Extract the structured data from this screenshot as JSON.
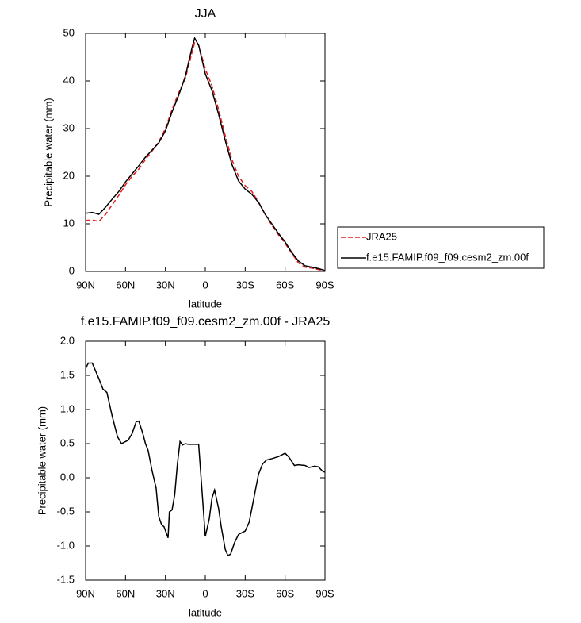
{
  "chart_data": [
    {
      "type": "line",
      "title": "JJA",
      "xlabel": "latitude",
      "ylabel": "Precipitable water (mm)",
      "x": [
        90,
        85,
        80,
        75,
        70,
        65,
        60,
        55,
        50,
        45,
        40,
        35,
        30,
        25,
        20,
        15,
        10,
        8,
        5,
        0,
        -5,
        -10,
        -15,
        -20,
        -25,
        -30,
        -35,
        -40,
        -45,
        -50,
        -55,
        -60,
        -65,
        -70,
        -75,
        -80,
        -85,
        -90
      ],
      "series": [
        {
          "name": "JRA25",
          "color": "#e31a1c",
          "line_style": "dashed",
          "values": [
            10.7,
            10.8,
            10.5,
            12,
            14,
            16,
            18.2,
            20,
            21.5,
            23.5,
            25.3,
            27.2,
            30,
            34,
            37.5,
            40.5,
            46,
            48,
            47.5,
            42.5,
            39,
            34,
            28.5,
            23.5,
            20,
            18,
            16.8,
            14.6,
            12,
            9.7,
            7.7,
            5.9,
            3.8,
            1.8,
            0.9,
            0.7,
            0.4,
            0.1
          ]
        },
        {
          "name": "f.e15.FAMIP.f09_f09.cesm2_zm.00f",
          "color": "#000000",
          "line_style": "solid",
          "values": [
            12.2,
            12.4,
            12,
            13.5,
            15.2,
            16.8,
            18.8,
            20.5,
            22.2,
            24,
            25.5,
            27,
            29.5,
            33.5,
            37,
            41,
            47,
            49,
            47.5,
            41.5,
            38,
            33,
            27.5,
            22.5,
            19,
            17.3,
            16.2,
            14.5,
            12,
            10,
            8,
            6.2,
            4,
            2.2,
            1.2,
            0.9,
            0.6,
            0.2
          ]
        }
      ],
      "xlim": [
        90,
        -90
      ],
      "xticks": [
        {
          "value": 90,
          "label": "90N"
        },
        {
          "value": 60,
          "label": "60N"
        },
        {
          "value": 30,
          "label": "30N"
        },
        0,
        {
          "value": -30,
          "label": "30S"
        },
        {
          "value": -60,
          "label": "60S"
        },
        {
          "value": -90,
          "label": "90S"
        }
      ],
      "ylim": [
        0,
        50
      ],
      "yticks": [
        0,
        10,
        20,
        30,
        40,
        50
      ],
      "legend": "right"
    },
    {
      "type": "line",
      "title": "f.e15.FAMIP.f09_f09.cesm2_zm.00f - JRA25",
      "xlabel": "latitude",
      "ylabel": "Precipitable water (mm)",
      "x": [
        90,
        88,
        85,
        80,
        77,
        74,
        70,
        66,
        63,
        58,
        55,
        52,
        50,
        47,
        45,
        43,
        40,
        37,
        35,
        33,
        31,
        28,
        27,
        25,
        23,
        21,
        19,
        17,
        15,
        13,
        5,
        0,
        -3,
        -5,
        -7,
        -10,
        -12,
        -15,
        -17,
        -19,
        -22,
        -25,
        -28,
        -30,
        -33,
        -36,
        -40,
        -43,
        -46,
        -50,
        -55,
        -60,
        -63,
        -67,
        -70,
        -75,
        -78,
        -82,
        -85,
        -88,
        -90
      ],
      "values": [
        1.6,
        1.68,
        1.68,
        1.45,
        1.3,
        1.25,
        0.9,
        0.6,
        0.5,
        0.55,
        0.65,
        0.82,
        0.83,
        0.65,
        0.5,
        0.4,
        0.1,
        -0.15,
        -0.57,
        -0.68,
        -0.72,
        -0.88,
        -0.5,
        -0.47,
        -0.25,
        0.2,
        0.53,
        0.48,
        0.5,
        0.49,
        0.49,
        -0.86,
        -0.6,
        -0.3,
        -0.18,
        -0.45,
        -0.72,
        -1.05,
        -1.14,
        -1.12,
        -0.95,
        -0.83,
        -0.8,
        -0.78,
        -0.65,
        -0.35,
        0.05,
        0.2,
        0.26,
        0.28,
        0.31,
        0.36,
        0.3,
        0.18,
        0.19,
        0.18,
        0.15,
        0.17,
        0.16,
        0.1,
        0.08
      ],
      "color": "#000000",
      "xlim": [
        90,
        -90
      ],
      "xticks": [
        {
          "value": 90,
          "label": "90N"
        },
        {
          "value": 60,
          "label": "60N"
        },
        {
          "value": 30,
          "label": "30N"
        },
        0,
        {
          "value": -30,
          "label": "30S"
        },
        {
          "value": -60,
          "label": "60S"
        },
        {
          "value": -90,
          "label": "90S"
        }
      ],
      "ylim": [
        -1.5,
        2.0
      ],
      "yticks": [
        -1.5,
        {
          "value": -1.0,
          "label": "-1.0"
        },
        -0.5,
        {
          "value": 0.0,
          "label": "0.0"
        },
        0.5,
        {
          "value": 1.0,
          "label": "1.0"
        },
        1.5,
        {
          "value": 2.0,
          "label": "2.0"
        }
      ]
    }
  ]
}
